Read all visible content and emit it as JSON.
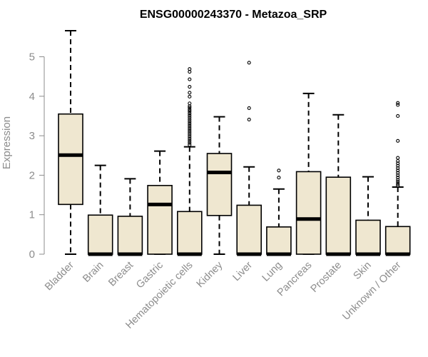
{
  "chart_data": {
    "type": "boxplot",
    "title": "ENSG00000243370 - Metazoa_SRP",
    "ylabel": "Expression",
    "xlabel": "",
    "ylim": [
      0,
      5.75
    ],
    "yticks": [
      0,
      1,
      2,
      3,
      4,
      5
    ],
    "grid": false,
    "legend": "none",
    "colors": {
      "box_fill": "#efe7d0",
      "stroke": "#000000",
      "axis_text": "#8c8c8c"
    },
    "categories": [
      "Bladder",
      "Brain",
      "Breast",
      "Gastric",
      "Hematopoietic cells",
      "Kidney",
      "Liver",
      "Lung",
      "Pancreas",
      "Prostate",
      "Skin",
      "Unknown / Other"
    ],
    "boxes": [
      {
        "category": "Bladder",
        "min": 0.0,
        "q1": 1.26,
        "median": 2.51,
        "q3": 3.55,
        "max": 5.66,
        "outliers": []
      },
      {
        "category": "Brain",
        "min": 0.0,
        "q1": 0.0,
        "median": 0.0,
        "q3": 0.99,
        "max": 2.25,
        "outliers": []
      },
      {
        "category": "Breast",
        "min": 0.0,
        "q1": 0.0,
        "median": 0.0,
        "q3": 0.96,
        "max": 1.91,
        "outliers": []
      },
      {
        "category": "Gastric",
        "min": 0.0,
        "q1": 0.0,
        "median": 1.26,
        "q3": 1.74,
        "max": 2.61,
        "outliers": []
      },
      {
        "category": "Hematopoietic cells",
        "min": 0.0,
        "q1": 0.0,
        "median": 0.0,
        "q3": 1.08,
        "max": 2.72,
        "outliers": [
          4.69,
          4.62,
          4.43,
          4.24,
          4.09,
          3.99,
          3.82,
          3.75,
          3.71,
          3.66,
          3.62,
          3.57,
          3.52,
          3.47,
          3.42,
          3.37,
          3.32,
          3.27,
          3.22,
          3.17,
          3.12,
          3.07,
          3.02,
          2.97,
          2.92,
          2.87,
          2.82,
          2.77
        ]
      },
      {
        "category": "Kidney",
        "min": 0.0,
        "q1": 0.98,
        "median": 2.07,
        "q3": 2.55,
        "max": 3.48,
        "outliers": []
      },
      {
        "category": "Liver",
        "min": 0.0,
        "q1": 0.0,
        "median": 0.0,
        "q3": 1.24,
        "max": 2.21,
        "outliers": [
          4.85,
          3.7,
          3.41
        ]
      },
      {
        "category": "Lung",
        "min": 0.0,
        "q1": 0.0,
        "median": 0.0,
        "q3": 0.69,
        "max": 1.65,
        "outliers": [
          2.12,
          1.94
        ]
      },
      {
        "category": "Pancreas",
        "min": 0.0,
        "q1": 0.0,
        "median": 0.89,
        "q3": 2.09,
        "max": 4.07,
        "outliers": []
      },
      {
        "category": "Prostate",
        "min": 0.0,
        "q1": 0.0,
        "median": 0.0,
        "q3": 1.95,
        "max": 3.53,
        "outliers": []
      },
      {
        "category": "Skin",
        "min": 0.0,
        "q1": 0.0,
        "median": 0.0,
        "q3": 0.86,
        "max": 1.96,
        "outliers": []
      },
      {
        "category": "Unknown / Other",
        "min": 0.0,
        "q1": 0.0,
        "median": 0.0,
        "q3": 0.7,
        "max": 1.7,
        "outliers": [
          3.83,
          3.78,
          3.5,
          2.87,
          2.44,
          2.36,
          2.3,
          2.24,
          2.18,
          2.12,
          2.06,
          2.0,
          1.94,
          1.88,
          1.83,
          1.78,
          1.74
        ]
      }
    ]
  }
}
